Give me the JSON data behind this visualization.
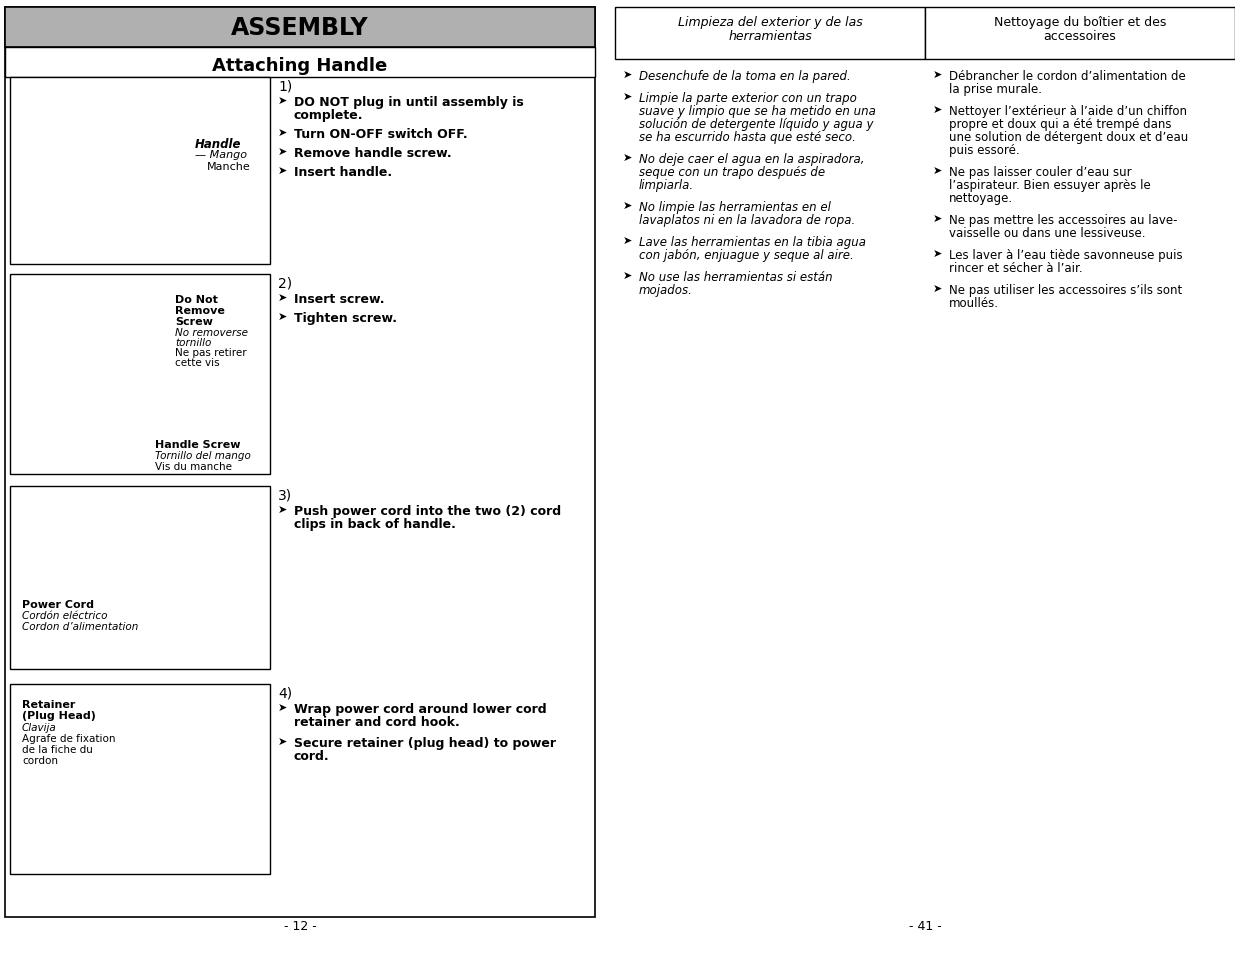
{
  "bg_color": "#ffffff",
  "assembly_header": "ASSEMBLY",
  "assembly_header_bg": "#b0b0b0",
  "attaching_header": "Attaching Handle",
  "spanish_header_line1": "Limpieza del exterior y de las",
  "spanish_header_line2": "herramientas",
  "french_header_line1": "Nettoyage du boîtier et des",
  "french_header_line2": "accessoires",
  "spanish_bullets": [
    [
      "Desenchufe de la toma en la pared."
    ],
    [
      "Limpie la parte exterior con un trapo",
      "suave y limpio que se ha metido en una",
      "solución de detergente líquido y agua y",
      "se ha escurrido hasta que esté seco."
    ],
    [
      "No deje caer el agua en la aspiradora,",
      "seque con un trapo después de",
      "limpiarla."
    ],
    [
      "No limpie las herramientas en el",
      "lavaplatos ni en la lavadora de ropa."
    ],
    [
      "Lave las herramientas en la tibia agua",
      "con jabón, enjuague y seque al aire."
    ],
    [
      "No use las herramientas si están",
      "mojados."
    ]
  ],
  "french_bullets": [
    [
      "Débrancher le cordon d’alimentation de",
      "la prise murale."
    ],
    [
      "Nettoyer l’extérieur à l’aide d’un chiffon",
      "propre et doux qui a été trempé dans",
      "une solution de détergent doux et d’eau",
      "puis essoré."
    ],
    [
      "Ne pas laisser couler d’eau sur",
      "l’aspirateur. Bien essuyer après le",
      "nettoyage."
    ],
    [
      "Ne pas mettre les accessoires au lave-",
      "vaisselle ou dans une lessiveuse."
    ],
    [
      "Les laver à l’eau tiède savonneuse puis",
      "rincer et sécher à l’air."
    ],
    [
      "Ne pas utiliser les accessoires s’ils sont",
      "moullés."
    ]
  ],
  "step1_num": "1)",
  "step1_bullets": [
    [
      "DO NOT plug in until assembly is",
      "complete."
    ],
    [
      "Turn ON-OFF switch OFF."
    ],
    [
      "Remove handle screw."
    ],
    [
      "Insert handle."
    ]
  ],
  "step2_num": "2)",
  "step2_bullets": [
    [
      "Insert screw."
    ],
    [
      "Tighten screw."
    ]
  ],
  "step3_num": "3)",
  "step3_bullets": [
    [
      "Push power cord into the two (2) cord",
      "clips in back of handle."
    ]
  ],
  "step4_num": "4)",
  "step4_bullets": [
    [
      "Wrap power cord around lower cord",
      "retainer and cord hook."
    ],
    [
      "Secure retainer (plug head) to power",
      "cord."
    ]
  ],
  "img1_labels": [
    [
      "bold_italic",
      "Handle",
      195,
      138
    ],
    [
      "italic",
      "— Mango",
      195,
      150
    ],
    [
      "normal",
      "Manche",
      205,
      162
    ]
  ],
  "img2_labels_top": [
    [
      "bold",
      "Do Not",
      175,
      300
    ],
    [
      "bold",
      "Remove",
      175,
      311
    ],
    [
      "bold",
      "Screw",
      175,
      322
    ],
    [
      "italic",
      "No removerse",
      175,
      333
    ],
    [
      "italic",
      "tornillo",
      175,
      344
    ],
    [
      "normal",
      "Ne pas retirer",
      175,
      355
    ],
    [
      "normal",
      "cette vis",
      175,
      366
    ]
  ],
  "img2_labels_bot": [
    [
      "bold",
      "Handle Screw",
      155,
      440
    ],
    [
      "italic",
      "Tornillo del mango",
      155,
      451
    ],
    [
      "normal",
      "Vis du manche",
      155,
      462
    ]
  ],
  "img3_labels": [
    [
      "bold",
      "Power Cord",
      22,
      598
    ],
    [
      "italic",
      "Cordón eléctrico",
      22,
      609
    ],
    [
      "italic",
      "Cordon d’alimentation",
      22,
      620
    ]
  ],
  "img4_labels": [
    [
      "bold",
      "Retainer",
      22,
      706
    ],
    [
      "bold",
      "(Plug Head)",
      22,
      717
    ],
    [
      "italic",
      "Clavija",
      22,
      729
    ],
    [
      "normal",
      "Agrafe de fixation",
      22,
      740
    ],
    [
      "normal",
      "de la fiche du",
      22,
      751
    ],
    [
      "normal",
      "cordon",
      22,
      762
    ]
  ],
  "page_num_left": "- 12 -",
  "page_num_right": "- 41 -"
}
